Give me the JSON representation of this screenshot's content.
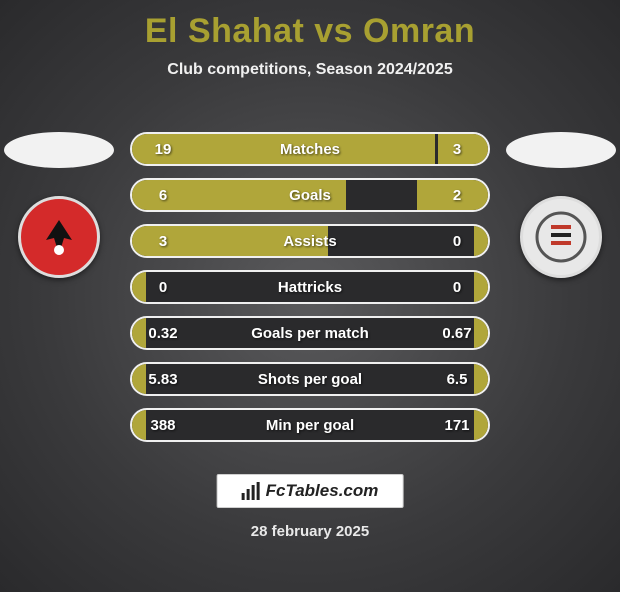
{
  "header": {
    "title": "El Shahat vs Omran",
    "subtitle": "Club competitions, Season 2024/2025",
    "title_color": "#a8a031"
  },
  "players": {
    "left_crest_bg": "#d42a2a",
    "right_crest_bg": "#e8e8e8"
  },
  "stats": {
    "bar_color": "#b0a63a",
    "row_bg": "#2a2a2c",
    "border_color": "#f0f0f0",
    "rows": [
      {
        "label": "Matches",
        "left": "19",
        "right": "3",
        "left_pct": 85,
        "right_pct": 14
      },
      {
        "label": "Goals",
        "left": "6",
        "right": "2",
        "left_pct": 60,
        "right_pct": 20
      },
      {
        "label": "Assists",
        "left": "3",
        "right": "0",
        "left_pct": 55,
        "right_pct": 4
      },
      {
        "label": "Hattricks",
        "left": "0",
        "right": "0",
        "left_pct": 4,
        "right_pct": 4
      },
      {
        "label": "Goals per match",
        "left": "0.32",
        "right": "0.67",
        "left_pct": 4,
        "right_pct": 4
      },
      {
        "label": "Shots per goal",
        "left": "5.83",
        "right": "6.5",
        "left_pct": 4,
        "right_pct": 4
      },
      {
        "label": "Min per goal",
        "left": "388",
        "right": "171",
        "left_pct": 4,
        "right_pct": 4
      }
    ]
  },
  "footer": {
    "brand": "FcTables.com",
    "date": "28 february 2025"
  }
}
